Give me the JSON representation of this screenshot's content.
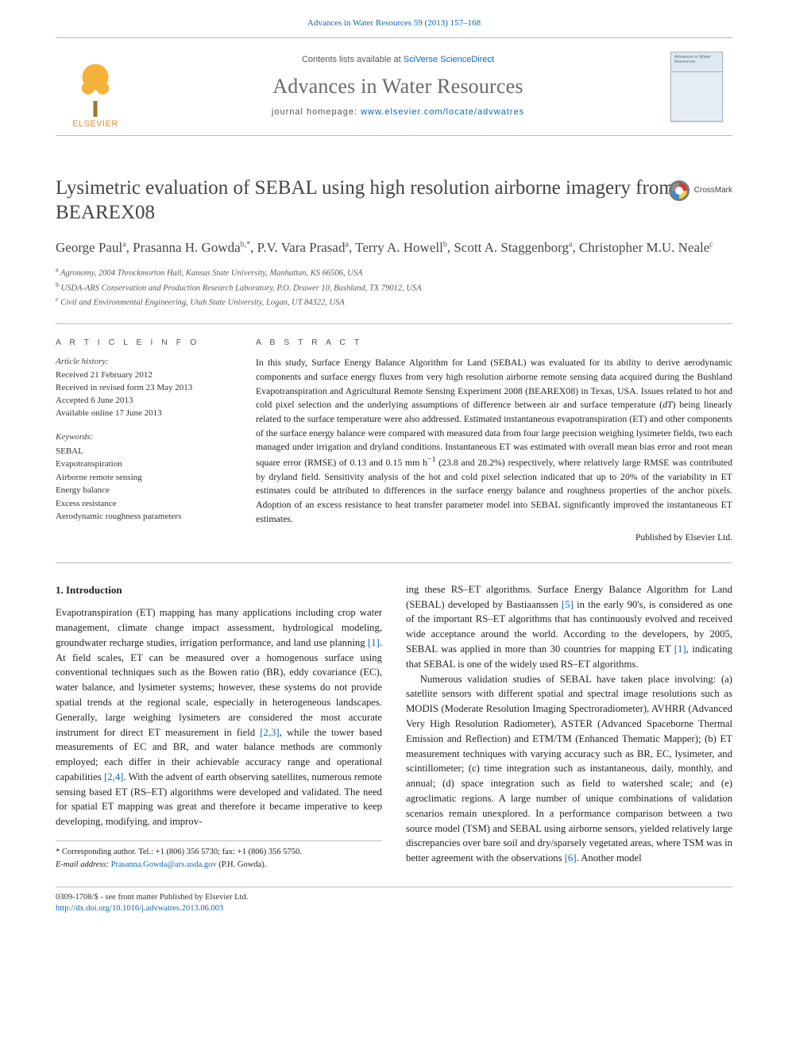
{
  "meta": {
    "citation_html": "<a href=\"#\">Advances in Water Resources 59 (2013) 157–168</a>",
    "contents_html": "Contents lists available at <a href=\"#\">SciVerse ScienceDirect</a>",
    "journal_name": "Advances in Water Resources",
    "homepage_html": "journal homepage: <a href=\"#\">www.elsevier.com/locate/advwatres</a>",
    "publisher_logo_text": "ELSEVIER",
    "cover_caption": "Advances in Water Resources"
  },
  "colors": {
    "link": "#0b68b3",
    "rule": "#bbbbbb",
    "title_gray": "#444444",
    "muted": "#555555",
    "elsevier_orange": "#f28a1a"
  },
  "crossmark": {
    "label": "CrossMark"
  },
  "title": "Lysimetric evaluation of SEBAL using high resolution airborne imagery from BEAREX08",
  "authors_html": "George Paul<sup>a</sup>, Prasanna H. Gowda<sup>b,</sup><sup class=\"star\">*</sup>, P.V. Vara Prasad<sup>a</sup>, Terry A. Howell<sup>b</sup>, Scott A. Staggenborg<sup>a</sup>, Christopher M.U. Neale<sup>c</sup>",
  "affiliations": [
    {
      "sup": "a",
      "text": "Agronomy, 2004 Throckmorton Hall, Kansas State University, Manhattan, KS 66506, USA"
    },
    {
      "sup": "b",
      "text": "USDA-ARS Conservation and Production Research Laboratory, P.O. Drawer 10, Bushland, TX 79012, USA"
    },
    {
      "sup": "c",
      "text": "Civil and Environmental Engineering, Utah State University, Logan, UT 84322, USA"
    }
  ],
  "article_info": {
    "section_head": "A R T I C L E   I N F O",
    "history_label": "Article history:",
    "history": [
      "Received 21 February 2012",
      "Received in revised form 23 May 2013",
      "Accepted 6 June 2013",
      "Available online 17 June 2013"
    ],
    "keywords_label": "Keywords:",
    "keywords": [
      "SEBAL",
      "Evapotranspiration",
      "Airborne remote sensing",
      "Energy balance",
      "Excess resistance",
      "Aerodynamic roughness parameters"
    ]
  },
  "abstract": {
    "section_head": "A B S T R A C T",
    "text_html": "In this study, Surface Energy Balance Algorithm for Land (SEBAL) was evaluated for its ability to derive aerodynamic components and surface energy fluxes from very high resolution airborne remote sensing data acquired during the Bushland Evapotranspiration and Agricultural Remote Sensing Experiment 2008 (BEAREX08) in Texas, USA. Issues related to hot and cold pixel selection and the underlying assumptions of difference between air and surface temperature (<i>dT</i>) being linearly related to the surface temperature were also addressed. Estimated instantaneous evapotranspiration (ET) and other components of the surface energy balance were compared with measured data from four large precision weighing lysimeter fields, two each managed under irrigation and dryland conditions. Instantaneous ET was estimated with overall mean bias error and root mean square error (RMSE) of 0.13 and 0.15 mm h<sup>−1</sup> (23.8 and 28.2%) respectively, where relatively large RMSE was contributed by dryland field. Sensitivity analysis of the hot and cold pixel selection indicated that up to 20% of the variability in ET estimates could be attributed to differences in the surface energy balance and roughness properties of the anchor pixels. Adoption of an excess resistance to heat transfer parameter model into SEBAL significantly improved the instantaneous ET estimates.",
    "published_by": "Published by Elsevier Ltd."
  },
  "body": {
    "heading": "1. Introduction",
    "paras_html": [
      "Evapotranspiration (ET) mapping has many applications including crop water management, climate change impact assessment, hydrological modeling, groundwater recharge studies, irrigation performance, and land use planning <span class=\"ref\">[1]</span>. At field scales, ET can be measured over a homogenous surface using conventional techniques such as the Bowen ratio (BR), eddy covariance (EC), water balance, and lysimeter systems; however, these systems do not provide spatial trends at the regional scale, especially in heterogeneous landscapes. Generally, large weighing lysimeters are considered the most accurate instrument for direct ET measurement in field <span class=\"ref\">[2,3]</span>, while the tower based measurements of EC and BR, and water balance methods are commonly employed; each differ in their achievable accuracy range and operational capabilities <span class=\"ref\">[2,4]</span>. With the advent of earth observing satellites, numerous remote sensing based ET (RS–ET) algorithms were developed and validated. The need for spatial ET mapping was great and therefore it became imperative to keep developing, modifying, and improv-",
      "ing these RS–ET algorithms. Surface Energy Balance Algorithm for Land (SEBAL) developed by Bastiaanssen <span class=\"ref\">[5]</span> in the early 90's, is considered as one of the important RS–ET algorithms that has continuously evolved and received wide acceptance around the world. According to the developers, by 2005, SEBAL was applied in more than 30 countries for mapping ET <span class=\"ref\">[1]</span>, indicating that SEBAL is one of the widely used RS–ET algorithms.",
      "Numerous validation studies of SEBAL have taken place involving: (a) satellite sensors with different spatial and spectral image resolutions such as MODIS (Moderate Resolution Imaging Spectroradiometer), AVHRR (Advanced Very High Resolution Radiometer), ASTER (Advanced Spaceborne Thermal Emission and Reflection) and ETM/TM (Enhanced Thematic Mapper); (b) ET measurement techniques with varying accuracy such as BR, EC, lysimeter, and scintillometer; (c) time integration such as instantaneous, daily, monthly, and annual; (d) space integration such as field to watershed scale; and (e) agroclimatic regions. A large number of unique combinations of validation scenarios remain unexplored. In a performance comparison between a two source model (TSM) and SEBAL using airborne sensors, yielded relatively large discrepancies over bare soil and dry/sparsely vegetated areas, where TSM was in better agreement with the observations <span class=\"ref\">[6]</span>. Another model"
    ]
  },
  "corresponding": {
    "line1": "* Corresponding author. Tel.: +1 (806) 356 5730; fax: +1 (806) 356 5750.",
    "email_label": "E-mail address:",
    "email": "Prasanna.Gowda@ars.usda.gov",
    "email_who": "(P.H. Gowda)."
  },
  "footer": {
    "line1": "0309-1708/$ - see front matter Published by Elsevier Ltd.",
    "doi_html": "<a href=\"#\">http://dx.doi.org/10.1016/j.advwatres.2013.06.003</a>"
  }
}
